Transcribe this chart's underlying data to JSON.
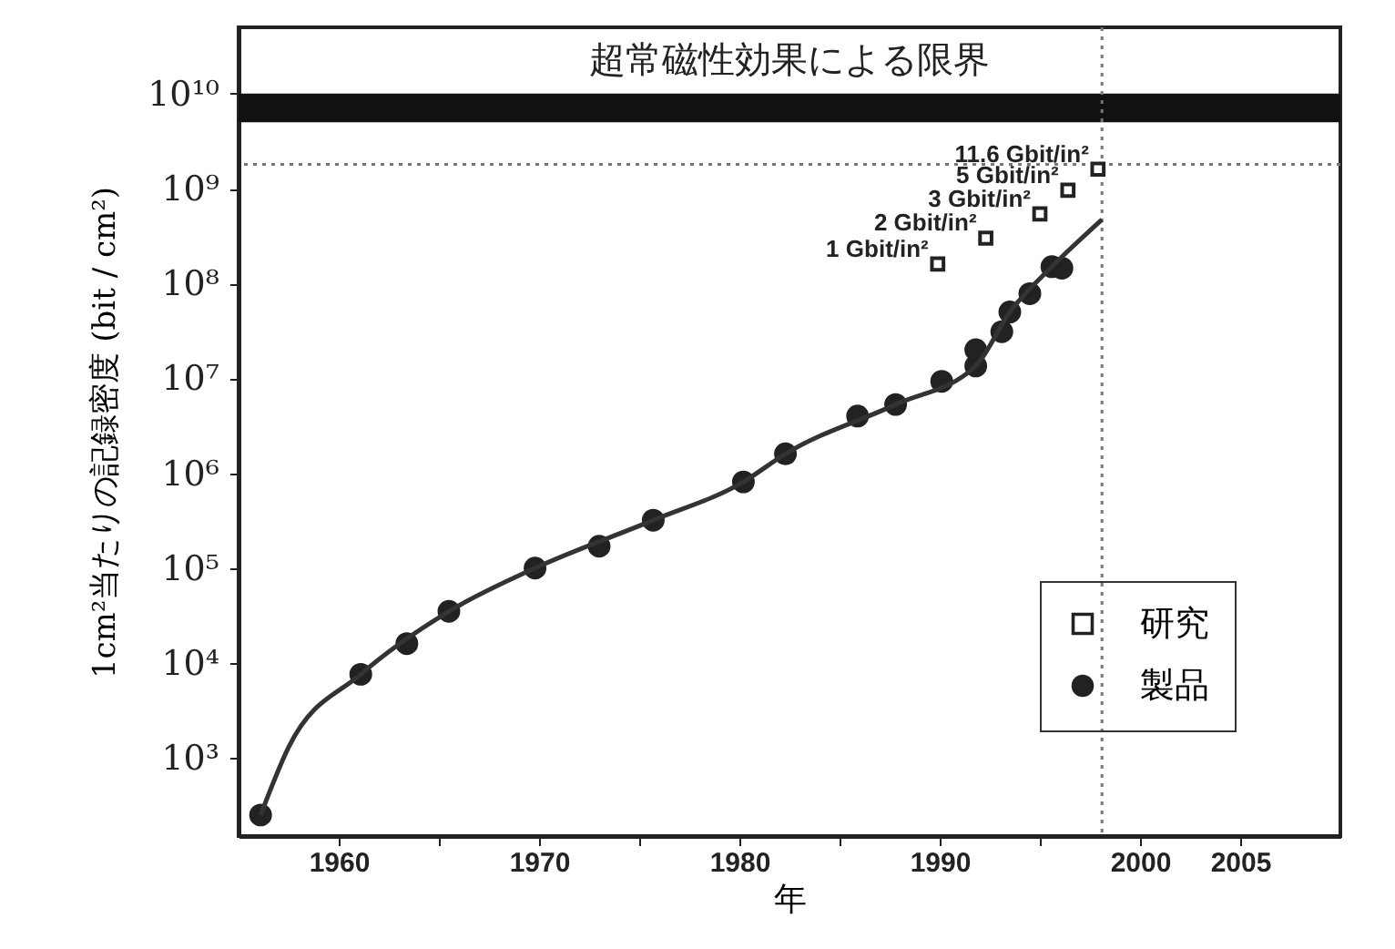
{
  "chart_data": {
    "type": "scatter",
    "xlabel": "年",
    "ylabel": "1cm²当たりの記録密度 (bit / cm²)",
    "log": "y",
    "xlim": [
      1955,
      2010
    ],
    "xticks": [
      1960,
      {
        "value": 1965,
        "label": null
      },
      1970,
      {
        "value": 1975,
        "label": null
      },
      1980,
      {
        "value": 1985,
        "label": null
      },
      1990,
      {
        "value": 1995,
        "label": null
      },
      2000,
      2005
    ],
    "ylim": [
      150,
      50000000000
    ],
    "yticks": [
      {
        "value": 1000,
        "label": "10³"
      },
      {
        "value": 10000,
        "label": "10⁴"
      },
      {
        "value": 100000,
        "label": "10⁵"
      },
      {
        "value": 1000000,
        "label": "10⁶"
      },
      {
        "value": 10000000,
        "label": "10⁷"
      },
      {
        "value": 100000000,
        "label": "10⁸"
      },
      {
        "value": 1000000000,
        "label": "10⁹"
      },
      {
        "value": 10000000000,
        "label": "10¹⁰"
      }
    ],
    "grid": false,
    "legend": "bottom right",
    "series": [
      {
        "name": "研究",
        "type": "scatter",
        "marker": "square",
        "color": "#222222",
        "x": [
          1989.9,
          1992.3,
          1995.0,
          1996.4,
          1997.9
        ],
        "values": [
          160000000,
          300000000,
          540000000,
          960000000,
          1600000000
        ]
      },
      {
        "name": "製品",
        "type": "scatter",
        "marker": "circle",
        "color": "#222222",
        "x": [
          1956.1,
          1961.1,
          1963.4,
          1965.5,
          1969.8,
          1973.0,
          1975.7,
          1980.2,
          1982.3,
          1985.9,
          1987.8,
          1990.1,
          1991.8,
          1991.8,
          1993.1,
          1993.5,
          1994.5,
          1995.6,
          1996.1
        ],
        "values": [
          250,
          7600,
          16000,
          35000,
          100000,
          170000,
          320000,
          810000,
          1600000,
          4000000,
          5300000,
          9300000,
          13500000,
          20000000,
          31000000,
          50000000,
          78000000,
          150000000,
          145000000
        ]
      },
      {
        "type": "line",
        "marker": "none",
        "color": "#333333",
        "x": [
          1956.1,
          1957.5,
          1961.1,
          1965.5,
          1969.8,
          1975.7,
          1980.2,
          1982.3,
          1987.8,
          1991.8,
          1993.5,
          1995.6,
          1998.1
        ],
        "values": [
          250,
          1300,
          7600,
          35000,
          100000,
          320000,
          810000,
          1600000,
          5300000,
          13500000,
          50000000,
          150000000,
          470000000
        ]
      }
    ],
    "annotations": [
      {
        "text": "1 Gbit/in²",
        "x": 1989.9,
        "y": 160000000
      },
      {
        "text": "2 Gbit/in²",
        "x": 1992.3,
        "y": 300000000
      },
      {
        "text": "3 Gbit/in²",
        "x": 1995.0,
        "y": 540000000
      },
      {
        "text": "5 Gbit/in²",
        "x": 1996.4,
        "y": 960000000
      },
      {
        "text": "11.6 Gbit/in²",
        "x": 1997.9,
        "y": 1600000000
      }
    ],
    "bands": [
      {
        "axis": "y",
        "from": 5000000000,
        "to": 10000000000,
        "label": "超常磁性効果による限界",
        "color": "#111111"
      }
    ],
    "ref_lines": [
      {
        "axis": "y",
        "value": 1800000000,
        "line_style": "dotted",
        "color": "#777777"
      },
      {
        "axis": "x",
        "value": 1998.1,
        "line_style": "dotted",
        "color": "#777777"
      }
    ]
  }
}
